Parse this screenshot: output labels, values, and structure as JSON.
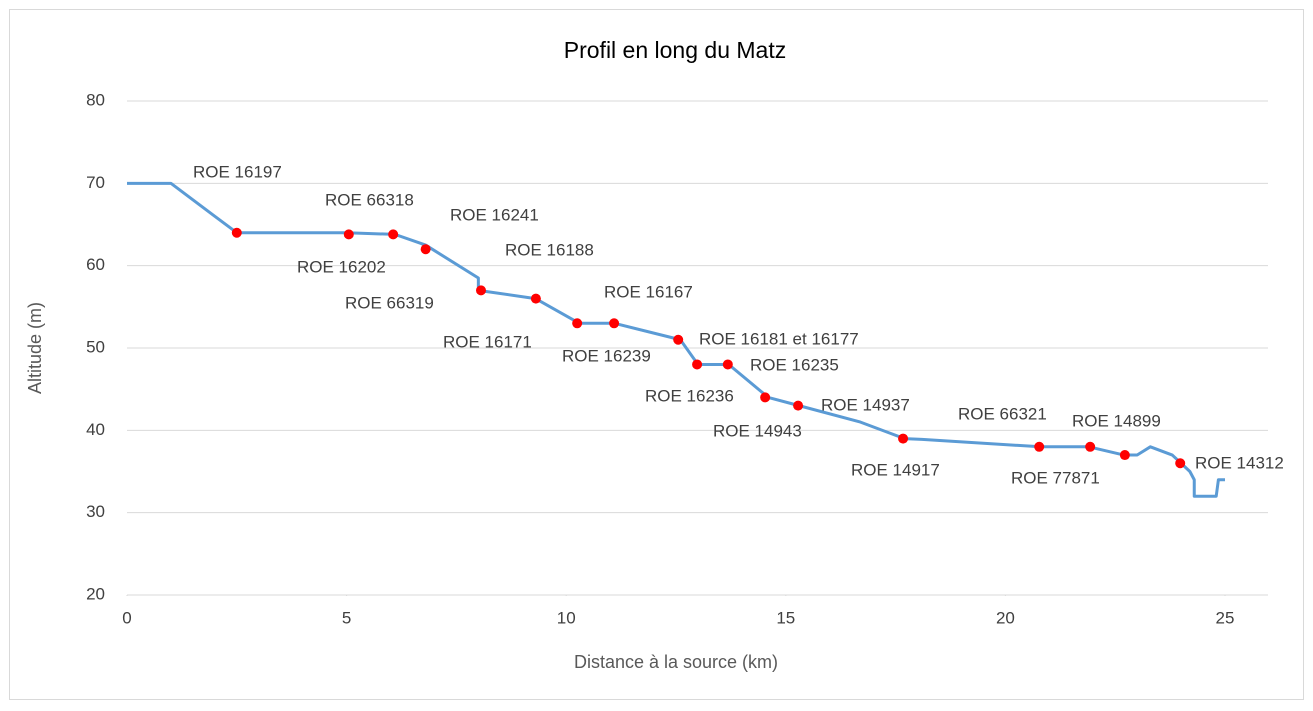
{
  "chart_data": {
    "type": "line",
    "title": "Profil en long du Matz",
    "x_label": "Distance à la source (km)",
    "y_label": "Altitude (m)",
    "xlim": [
      0,
      25
    ],
    "xticks": [
      0,
      5,
      10,
      15,
      20,
      25
    ],
    "ylim": [
      20,
      80
    ],
    "yticks": [
      20,
      30,
      40,
      50,
      60,
      70,
      80
    ],
    "grid": true,
    "series": [
      {
        "kind": "line",
        "color": "#5b9bd5",
        "x": [
          0,
          1,
          2,
          2.5,
          5,
          6.1,
          6.8,
          8,
          8,
          9.3,
          10.3,
          11.1,
          12.6,
          13,
          13.7,
          14.6,
          15.3,
          16.7,
          17.7,
          18.1,
          20.8,
          21.9,
          22.7,
          23,
          23.3,
          23.8,
          24,
          24.2,
          24.3,
          24.3,
          24.8,
          24.85,
          25
        ],
        "values": [
          70,
          70,
          66,
          64,
          64,
          63.8,
          62.5,
          58.5,
          57,
          56,
          53,
          53,
          51,
          48,
          48,
          44,
          43,
          41,
          39,
          38.9,
          38,
          38,
          37,
          37,
          38,
          37,
          36,
          35,
          34,
          32,
          32,
          34,
          34
        ]
      },
      {
        "kind": "points",
        "color": "#ff0000",
        "x": [
          2.5,
          5.05,
          6.06,
          6.8,
          8.06,
          9.31,
          10.25,
          11.09,
          12.55,
          12.98,
          13.68,
          14.53,
          15.28,
          17.67,
          20.77,
          21.93,
          22.72,
          23.98
        ],
        "values": [
          64,
          63.8,
          63.8,
          62,
          57,
          56,
          53,
          53,
          51,
          48,
          48,
          44,
          43,
          39,
          38,
          38,
          37,
          36
        ]
      }
    ],
    "annotations": [
      "ROE 16197",
      "ROE 66318",
      "ROE 16241",
      "ROE 16188",
      "ROE 16167",
      "ROE 16181 et 16177",
      "ROE 16235",
      "ROE 14937",
      "ROE 66321",
      "ROE 14899",
      "ROE 14312",
      "ROE 16202",
      "ROE 66319",
      "ROE 16171",
      "ROE 16239",
      "ROE 16236",
      "ROE 14943",
      "ROE 14917",
      "ROE 77871"
    ]
  }
}
